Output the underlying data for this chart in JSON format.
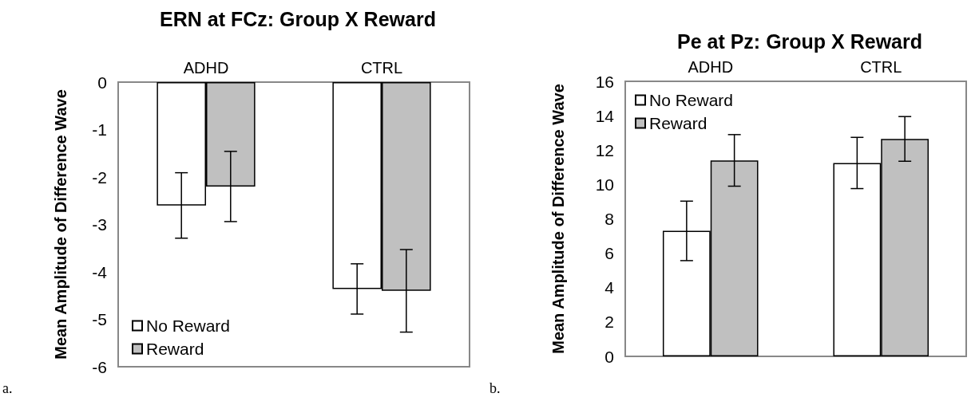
{
  "chart_data": [
    {
      "type": "bar",
      "title": "ERN at FCz: Group X Reward",
      "ylabel": "Mean Amplitude of Difference Wave",
      "categories": [
        "ADHD",
        "CTRL"
      ],
      "series": [
        {
          "name": "No Reward",
          "color": "#ffffff",
          "values": [
            -2.6,
            -4.36
          ],
          "errors": [
            0.69,
            0.53
          ]
        },
        {
          "name": "Reward",
          "color": "#c0c0c0",
          "values": [
            -2.2,
            -4.4
          ],
          "errors": [
            0.74,
            0.87
          ]
        }
      ],
      "ylim": [
        -6,
        0
      ],
      "yticks": [
        -6,
        -5,
        -4,
        -3,
        -2,
        -1,
        0
      ],
      "grid": false,
      "legend": "bottom left",
      "annotations": [
        "a."
      ]
    },
    {
      "type": "bar",
      "title": "Pe at Pz: Group X Reward",
      "ylabel": "Mean Amplitude of Difference Wave",
      "categories": [
        "ADHD",
        "CTRL"
      ],
      "series": [
        {
          "name": "No Reward",
          "color": "#ffffff",
          "values": [
            7.3,
            11.25
          ],
          "errors": [
            1.73,
            1.49
          ]
        },
        {
          "name": "Reward",
          "color": "#c0c0c0",
          "values": [
            11.4,
            12.65
          ],
          "errors": [
            1.5,
            1.3
          ]
        }
      ],
      "ylim": [
        0,
        16
      ],
      "yticks": [
        0,
        2,
        4,
        6,
        8,
        10,
        12,
        14,
        16
      ],
      "grid": false,
      "legend": "top left",
      "annotations": [
        "b."
      ]
    }
  ]
}
